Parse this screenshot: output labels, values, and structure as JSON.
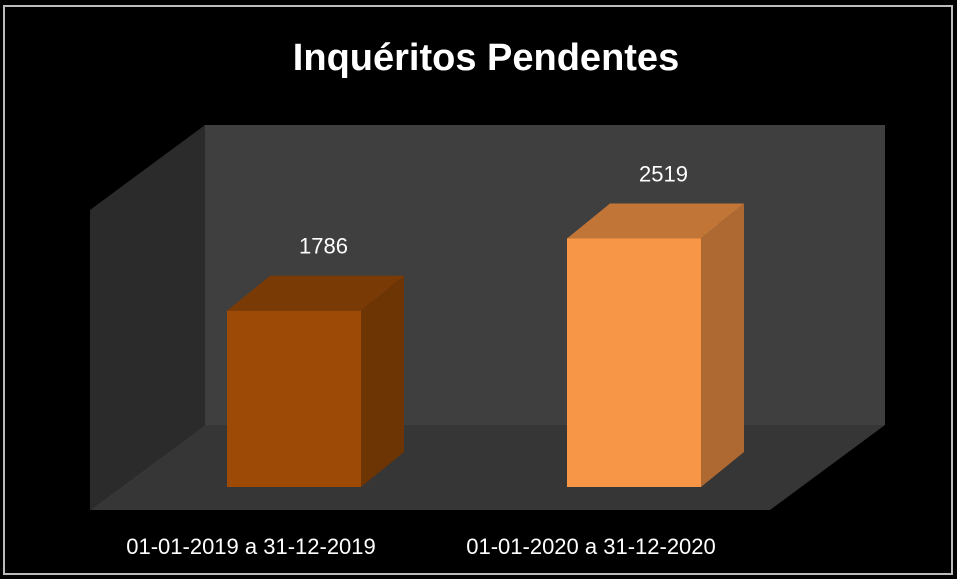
{
  "chart_data": {
    "type": "bar3d",
    "title": "Inquéritos Pendentes",
    "categories": [
      "01-01-2019 a 31-12-2019",
      "01-01-2020 a 31-12-2020"
    ],
    "values": [
      1786,
      2519
    ],
    "colors": [
      "#9c4a06",
      "#f79646"
    ],
    "ylim": [
      0,
      3000
    ]
  }
}
